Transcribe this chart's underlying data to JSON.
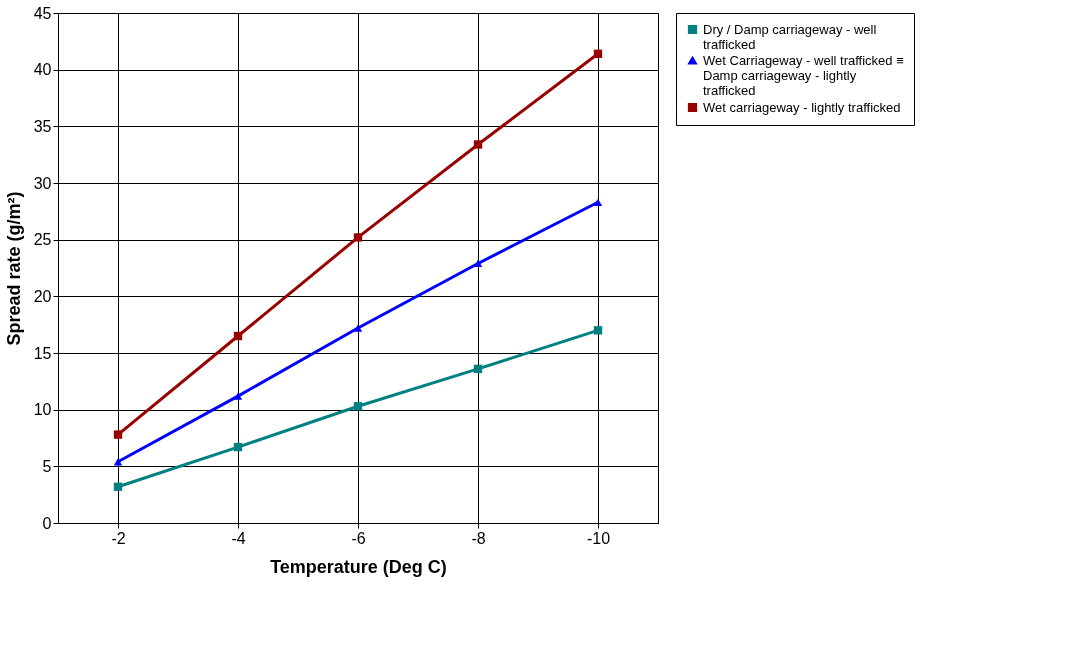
{
  "chart_data": {
    "type": "line",
    "xlabel": "Temperature (Deg C)",
    "ylabel": "Spread rate (g/m²)",
    "categories": [
      "-2",
      "-4",
      "-6",
      "-8",
      "-10"
    ],
    "ylim": [
      0,
      45
    ],
    "yticks": [
      0,
      5,
      10,
      15,
      20,
      25,
      30,
      35,
      40,
      45
    ],
    "grid": true,
    "legend": "right",
    "series": [
      {
        "name": "Dry / Damp carriageway - well trafficked",
        "color": "#008080",
        "marker": "square",
        "values": [
          3.2,
          6.7,
          10.3,
          13.6,
          17.0
        ]
      },
      {
        "name": "Wet Carriageway - well trafficked ≡ Damp carriageway - lightly trafficked",
        "color": "#0000ff",
        "marker": "triangle",
        "values": [
          5.4,
          11.2,
          17.2,
          22.9,
          28.3
        ]
      },
      {
        "name": "Wet carriageway - lightly trafficked",
        "color": "#990000",
        "marker": "square",
        "values": [
          7.8,
          16.5,
          25.2,
          33.4,
          41.4
        ]
      }
    ]
  }
}
